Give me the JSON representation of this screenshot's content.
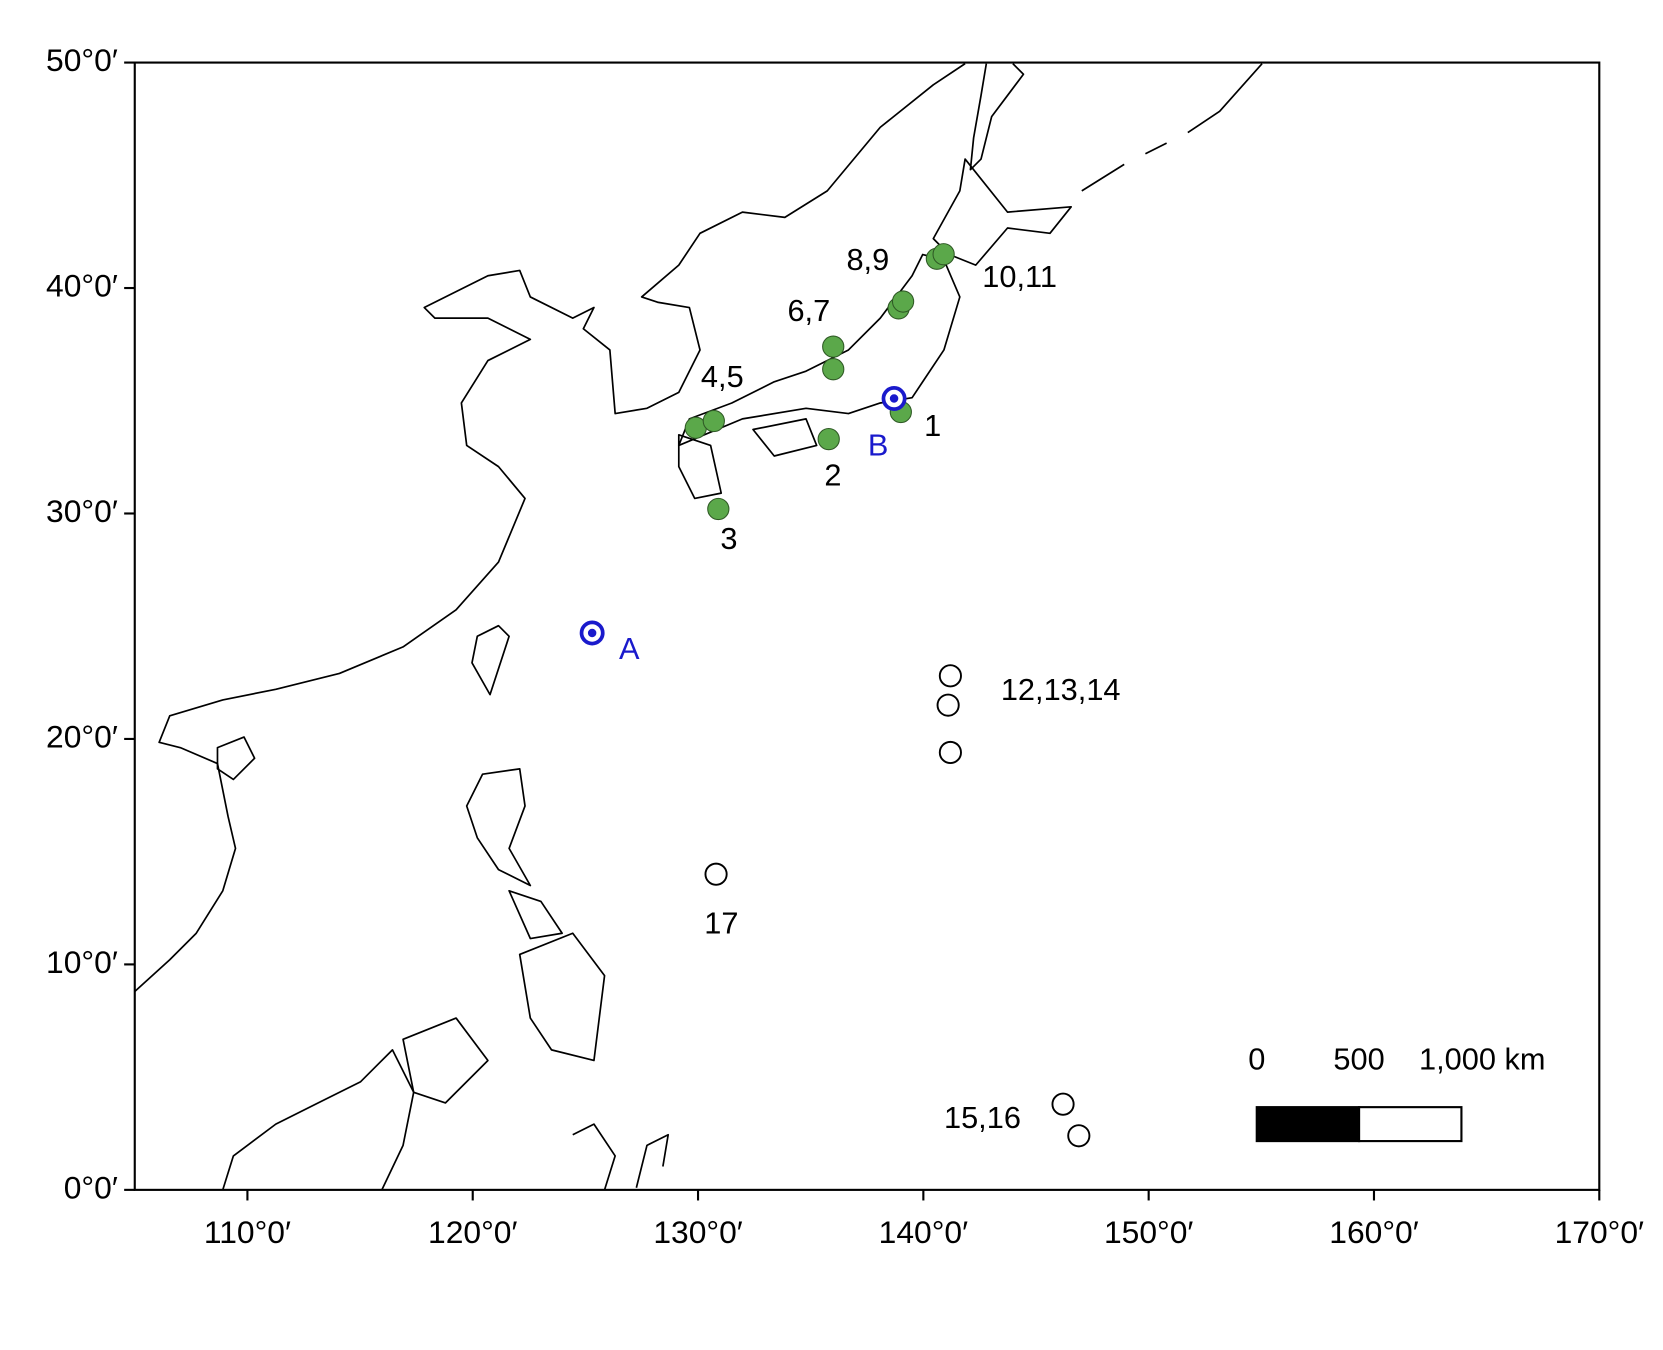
{
  "chart_data": {
    "type": "scatter",
    "xlim": [
      105,
      170
    ],
    "ylim": [
      0,
      50
    ],
    "xticks": [
      {
        "value": 110,
        "label": "110°0′"
      },
      {
        "value": 120,
        "label": "120°0′"
      },
      {
        "value": 130,
        "label": "130°0′"
      },
      {
        "value": 140,
        "label": "140°0′"
      },
      {
        "value": 150,
        "label": "150°0′"
      },
      {
        "value": 160,
        "label": "160°0′"
      },
      {
        "value": 170,
        "label": "170°0′"
      }
    ],
    "yticks": [
      {
        "value": 0,
        "label": "0°0′"
      },
      {
        "value": 10,
        "label": "10°0′"
      },
      {
        "value": 20,
        "label": "20°0′"
      },
      {
        "value": 30,
        "label": "30°0′"
      },
      {
        "value": 40,
        "label": "40°0′"
      },
      {
        "value": 50,
        "label": "50°0′"
      }
    ],
    "groups": [
      {
        "label": "1",
        "marker": "filled",
        "color": "#5ba84a",
        "x": [
          139.0
        ],
        "y": [
          34.5
        ]
      },
      {
        "label": "2",
        "marker": "filled",
        "color": "#5ba84a",
        "x": [
          135.8
        ],
        "y": [
          33.3
        ]
      },
      {
        "label": "3",
        "marker": "filled",
        "color": "#5ba84a",
        "x": [
          130.9
        ],
        "y": [
          30.2
        ]
      },
      {
        "label": "4,5",
        "marker": "filled",
        "color": "#5ba84a",
        "x": [
          129.9,
          130.7
        ],
        "y": [
          33.8,
          34.1
        ]
      },
      {
        "label": "6,7",
        "marker": "filled",
        "color": "#5ba84a",
        "x": [
          136.0,
          136.0
        ],
        "y": [
          37.4,
          36.4
        ]
      },
      {
        "label": "8,9",
        "marker": "filled",
        "color": "#5ba84a",
        "x": [
          138.9,
          139.1
        ],
        "y": [
          39.1,
          39.4
        ]
      },
      {
        "label": "10,11",
        "marker": "filled",
        "color": "#5ba84a",
        "x": [
          140.6,
          140.9
        ],
        "y": [
          41.3,
          41.5
        ]
      },
      {
        "label": "12,13,14",
        "marker": "open",
        "color": "#ffffff",
        "x": [
          141.2,
          141.1,
          141.2
        ],
        "y": [
          22.8,
          21.5,
          19.4
        ]
      },
      {
        "label": "15,16",
        "marker": "open",
        "color": "#ffffff",
        "x": [
          146.2,
          146.9
        ],
        "y": [
          3.8,
          2.4
        ]
      },
      {
        "label": "17",
        "marker": "open",
        "color": "#ffffff",
        "x": [
          130.8
        ],
        "y": [
          14.0
        ]
      },
      {
        "label": "A",
        "marker": "target",
        "color": "#1a1acc",
        "x": [
          125.3
        ],
        "y": [
          24.7
        ]
      },
      {
        "label": "B",
        "marker": "target",
        "color": "#1a1acc",
        "x": [
          138.7
        ],
        "y": [
          35.1
        ]
      }
    ],
    "scale_bar": {
      "ticks": [
        0,
        500,
        {
          "value": 1000,
          "label": "1,000 km"
        }
      ]
    }
  }
}
